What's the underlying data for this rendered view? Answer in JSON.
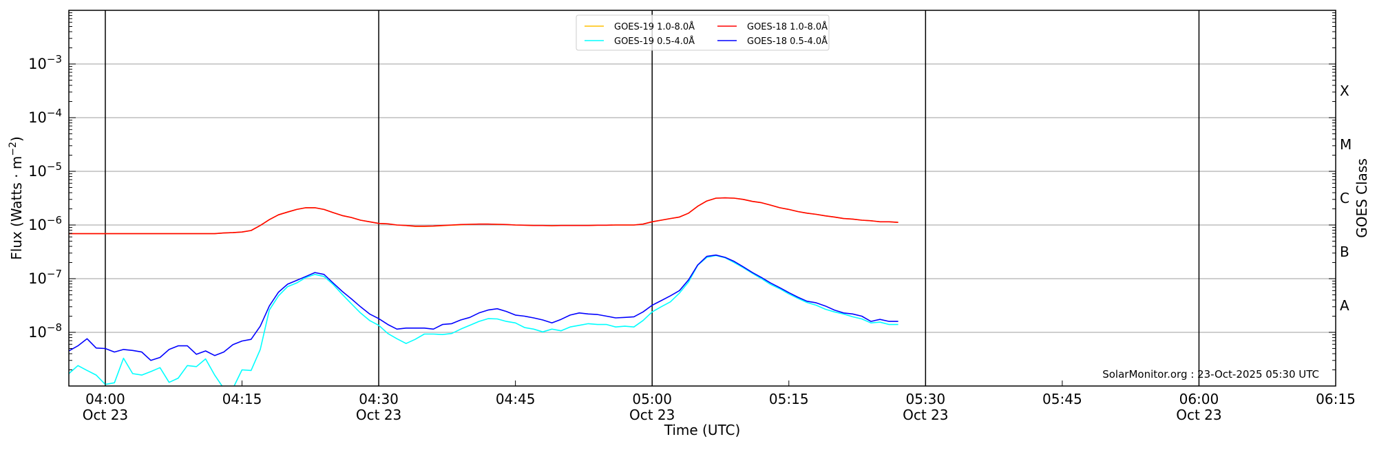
{
  "chart_data": {
    "type": "line",
    "xlabel": "Time (UTC)",
    "ylabel": "Flux (Watts · m",
    "ylabel_sup": "−2",
    "ylabel_close": ")",
    "y2label": "GOES Class",
    "yscale": "log",
    "ylim": [
      1e-09,
      0.01
    ],
    "xlim": [
      "03:56",
      "06:15"
    ],
    "grid": "horizontal at decades",
    "legend_position": "top-center",
    "watermark": "SolarMonitor.org : 23-Oct-2025 05:30 UTC",
    "x_ticks": [
      {
        "value": "04:00",
        "label": "04:00",
        "sub": "Oct 23"
      },
      {
        "value": "04:15",
        "label": "04:15",
        "sub": ""
      },
      {
        "value": "04:30",
        "label": "04:30",
        "sub": "Oct 23"
      },
      {
        "value": "04:45",
        "label": "04:45",
        "sub": ""
      },
      {
        "value": "05:00",
        "label": "05:00",
        "sub": "Oct 23"
      },
      {
        "value": "05:15",
        "label": "05:15",
        "sub": ""
      },
      {
        "value": "05:30",
        "label": "05:30",
        "sub": "Oct 23"
      },
      {
        "value": "05:45",
        "label": "05:45",
        "sub": ""
      },
      {
        "value": "06:00",
        "label": "06:00",
        "sub": "Oct 23"
      },
      {
        "value": "06:15",
        "label": "06:15",
        "sub": ""
      }
    ],
    "vertical_lines": [
      "04:00",
      "04:30",
      "05:00",
      "05:30",
      "06:00"
    ],
    "y_ticks": [
      {
        "value": 0.001,
        "base": "10",
        "exp": "−3"
      },
      {
        "value": 0.0001,
        "base": "10",
        "exp": "−4"
      },
      {
        "value": 1e-05,
        "base": "10",
        "exp": "−5"
      },
      {
        "value": 1e-06,
        "base": "10",
        "exp": "−6"
      },
      {
        "value": 1e-07,
        "base": "10",
        "exp": "−7"
      },
      {
        "value": 1e-08,
        "base": "10",
        "exp": "−8"
      }
    ],
    "goes_classes": [
      {
        "label": "X",
        "value": 0.000316
      },
      {
        "label": "M",
        "value": 3.16e-05
      },
      {
        "label": "C",
        "value": 3.16e-06
      },
      {
        "label": "B",
        "value": 3.16e-07
      },
      {
        "label": "A",
        "value": 3.16e-08
      }
    ],
    "x": [
      "03:56",
      "03:57",
      "03:58",
      "03:59",
      "04:00",
      "04:01",
      "04:02",
      "04:03",
      "04:04",
      "04:05",
      "04:06",
      "04:07",
      "04:08",
      "04:09",
      "04:10",
      "04:11",
      "04:12",
      "04:13",
      "04:14",
      "04:15",
      "04:16",
      "04:17",
      "04:18",
      "04:19",
      "04:20",
      "04:21",
      "04:22",
      "04:23",
      "04:24",
      "04:25",
      "04:26",
      "04:27",
      "04:28",
      "04:29",
      "04:30",
      "04:31",
      "04:32",
      "04:33",
      "04:34",
      "04:35",
      "04:36",
      "04:37",
      "04:38",
      "04:39",
      "04:40",
      "04:41",
      "04:42",
      "04:43",
      "04:44",
      "04:45",
      "04:46",
      "04:47",
      "04:48",
      "04:49",
      "04:50",
      "04:51",
      "04:52",
      "04:53",
      "04:54",
      "04:55",
      "04:56",
      "04:57",
      "04:58",
      "04:59",
      "05:00",
      "05:01",
      "05:02",
      "05:03",
      "05:04",
      "05:05",
      "05:06",
      "05:07",
      "05:08",
      "05:09",
      "05:10",
      "05:11",
      "05:12",
      "05:13",
      "05:14",
      "05:15",
      "05:16",
      "05:17",
      "05:18",
      "05:19",
      "05:20",
      "05:21",
      "05:22",
      "05:23",
      "05:24",
      "05:25",
      "05:26",
      "05:27"
    ],
    "series": [
      {
        "name": "GOES-19 1.0-8.0Å",
        "color": "#ffc000",
        "values": [
          6.9e-07,
          6.9e-07,
          6.9e-07,
          6.9e-07,
          6.9e-07,
          6.9e-07,
          6.9e-07,
          6.9e-07,
          6.9e-07,
          6.9e-07,
          6.9e-07,
          6.9e-07,
          6.9e-07,
          6.9e-07,
          6.9e-07,
          6.9e-07,
          6.9e-07,
          7.1e-07,
          7.2e-07,
          7.4e-07,
          7.9e-07,
          9.8e-07,
          1.26e-06,
          1.55e-06,
          1.74e-06,
          1.95e-06,
          2.1e-06,
          2.1e-06,
          1.95e-06,
          1.7e-06,
          1.5e-06,
          1.38e-06,
          1.23e-06,
          1.15e-06,
          1.07e-06,
          1.05e-06,
          1e-06,
          9.8e-07,
          9.4e-07,
          9.4e-07,
          9.5e-07,
          9.7e-07,
          9.9e-07,
          1.01e-06,
          1.03e-06,
          1.04e-06,
          1.04e-06,
          1.03e-06,
          1.02e-06,
          1e-06,
          9.9e-07,
          9.8e-07,
          9.8e-07,
          9.7e-07,
          9.8e-07,
          9.8e-07,
          9.8e-07,
          9.8e-07,
          9.9e-07,
          9.9e-07,
          1e-06,
          1e-06,
          1e-06,
          1.04e-06,
          1.15e-06,
          1.23e-06,
          1.32e-06,
          1.41e-06,
          1.66e-06,
          2.24e-06,
          2.8e-06,
          3.16e-06,
          3.2e-06,
          3.16e-06,
          3e-06,
          2.75e-06,
          2.6e-06,
          2.35e-06,
          2.1e-06,
          1.95e-06,
          1.78e-06,
          1.66e-06,
          1.58e-06,
          1.48e-06,
          1.41e-06,
          1.32e-06,
          1.29e-06,
          1.23e-06,
          1.2e-06,
          1.15e-06,
          1.15e-06,
          1.12e-06
        ]
      },
      {
        "name": "GOES-18 1.0-8.0Å",
        "color": "#ff0000",
        "values": [
          6.9e-07,
          6.9e-07,
          6.9e-07,
          6.9e-07,
          6.9e-07,
          6.9e-07,
          6.9e-07,
          6.9e-07,
          6.9e-07,
          6.9e-07,
          6.9e-07,
          6.9e-07,
          6.9e-07,
          6.9e-07,
          6.9e-07,
          6.9e-07,
          6.9e-07,
          7.1e-07,
          7.2e-07,
          7.4e-07,
          7.9e-07,
          9.8e-07,
          1.26e-06,
          1.55e-06,
          1.74e-06,
          1.95e-06,
          2.1e-06,
          2.1e-06,
          1.95e-06,
          1.7e-06,
          1.5e-06,
          1.38e-06,
          1.23e-06,
          1.15e-06,
          1.07e-06,
          1.05e-06,
          1e-06,
          9.8e-07,
          9.5e-07,
          9.5e-07,
          9.6e-07,
          9.8e-07,
          1e-06,
          1.02e-06,
          1.03e-06,
          1.04e-06,
          1.04e-06,
          1.03e-06,
          1.02e-06,
          1e-06,
          9.9e-07,
          9.8e-07,
          9.8e-07,
          9.7e-07,
          9.8e-07,
          9.8e-07,
          9.8e-07,
          9.8e-07,
          9.9e-07,
          9.9e-07,
          1e-06,
          1e-06,
          1e-06,
          1.04e-06,
          1.15e-06,
          1.23e-06,
          1.32e-06,
          1.41e-06,
          1.66e-06,
          2.24e-06,
          2.8e-06,
          3.16e-06,
          3.2e-06,
          3.16e-06,
          3e-06,
          2.75e-06,
          2.6e-06,
          2.35e-06,
          2.1e-06,
          1.95e-06,
          1.78e-06,
          1.66e-06,
          1.58e-06,
          1.48e-06,
          1.41e-06,
          1.32e-06,
          1.29e-06,
          1.23e-06,
          1.2e-06,
          1.15e-06,
          1.15e-06,
          1.12e-06
        ]
      },
      {
        "name": "GOES-19 0.5-4.0Å",
        "color": "#00ffff",
        "values": [
          1.7e-09,
          2.4e-09,
          1.95e-09,
          1.6e-09,
          1.07e-09,
          1.15e-09,
          3.3e-09,
          1.7e-09,
          1.6e-09,
          1.86e-09,
          2.2e-09,
          1.17e-09,
          1.4e-09,
          2.4e-09,
          2.3e-09,
          3.2e-09,
          1.6e-09,
          9e-10,
          9e-10,
          2e-09,
          1.95e-09,
          4.8e-09,
          2.6e-08,
          4.8e-08,
          7.1e-08,
          8.3e-08,
          1.05e-07,
          1.2e-07,
          1.1e-07,
          7.8e-08,
          5.1e-08,
          3.4e-08,
          2.3e-08,
          1.66e-08,
          1.35e-08,
          9.5e-09,
          7.6e-09,
          6.2e-09,
          7.4e-09,
          9.3e-09,
          9.3e-09,
          9.1e-09,
          9.5e-09,
          1.15e-08,
          1.35e-08,
          1.6e-08,
          1.8e-08,
          1.78e-08,
          1.6e-08,
          1.5e-08,
          1.23e-08,
          1.15e-08,
          1.02e-08,
          1.15e-08,
          1.07e-08,
          1.26e-08,
          1.35e-08,
          1.45e-08,
          1.4e-08,
          1.4e-08,
          1.26e-08,
          1.3e-08,
          1.26e-08,
          1.66e-08,
          2.4e-08,
          3e-08,
          3.7e-08,
          5.4e-08,
          8.7e-08,
          1.78e-07,
          2.5e-07,
          2.7e-07,
          2.45e-07,
          2e-07,
          1.6e-07,
          1.26e-07,
          1e-07,
          7.8e-08,
          6.5e-08,
          5.2e-08,
          4.3e-08,
          3.6e-08,
          3.2e-08,
          2.7e-08,
          2.4e-08,
          2.2e-08,
          1.95e-08,
          1.78e-08,
          1.5e-08,
          1.55e-08,
          1.4e-08,
          1.4e-08
        ]
      },
      {
        "name": "GOES-18 0.5-4.0Å",
        "color": "#0000ff",
        "values": [
          4.5e-09,
          5.6e-09,
          7.6e-09,
          5.1e-09,
          5e-09,
          4.3e-09,
          4.8e-09,
          4.6e-09,
          4.3e-09,
          3e-09,
          3.4e-09,
          4.8e-09,
          5.6e-09,
          5.6e-09,
          3.9e-09,
          4.5e-09,
          3.7e-09,
          4.3e-09,
          5.9e-09,
          6.9e-09,
          7.4e-09,
          1.3e-08,
          3.1e-08,
          5.6e-08,
          7.9e-08,
          9.3e-08,
          1.1e-07,
          1.3e-07,
          1.2e-07,
          8.3e-08,
          5.8e-08,
          4.2e-08,
          3e-08,
          2.2e-08,
          1.8e-08,
          1.4e-08,
          1.15e-08,
          1.2e-08,
          1.2e-08,
          1.2e-08,
          1.15e-08,
          1.4e-08,
          1.45e-08,
          1.7e-08,
          1.9e-08,
          2.3e-08,
          2.6e-08,
          2.75e-08,
          2.45e-08,
          2.1e-08,
          2e-08,
          1.86e-08,
          1.7e-08,
          1.5e-08,
          1.74e-08,
          2.1e-08,
          2.3e-08,
          2.2e-08,
          2.15e-08,
          2e-08,
          1.86e-08,
          1.9e-08,
          1.95e-08,
          2.4e-08,
          3.2e-08,
          3.9e-08,
          4.8e-08,
          6e-08,
          9.5e-08,
          1.8e-07,
          2.6e-07,
          2.75e-07,
          2.5e-07,
          2.1e-07,
          1.66e-07,
          1.3e-07,
          1.05e-07,
          8.3e-08,
          6.8e-08,
          5.5e-08,
          4.5e-08,
          3.8e-08,
          3.55e-08,
          3.1e-08,
          2.6e-08,
          2.3e-08,
          2.2e-08,
          2e-08,
          1.6e-08,
          1.74e-08,
          1.6e-08,
          1.6e-08
        ]
      }
    ],
    "legend_order": [
      0,
      2,
      1,
      3
    ]
  }
}
